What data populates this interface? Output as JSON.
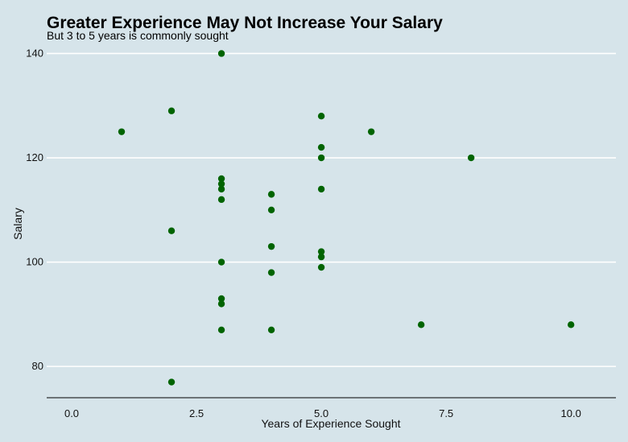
{
  "chart_data": {
    "type": "scatter",
    "title": "Greater Experience May Not Increase Your Salary",
    "subtitle": "But 3 to 5 years is commonly sought",
    "xlabel": "Years of Experience Sought",
    "ylabel": "Salary",
    "xlim": [
      -0.5,
      10.9
    ],
    "ylim": [
      74,
      141
    ],
    "x_ticks": [
      0,
      2.5,
      5,
      7.5,
      10
    ],
    "x_tick_labels": [
      "0.0",
      "2.5",
      "5.0",
      "7.5",
      "10.0"
    ],
    "y_ticks": [
      80,
      100,
      120,
      140
    ],
    "y_tick_labels": [
      "80",
      "100",
      "120",
      "140"
    ],
    "grid": "horizontal-major",
    "point_color": "#006400",
    "grid_color": "#ffffff",
    "background_color": "#d6e4ea",
    "points": [
      {
        "x": 1,
        "y": 125
      },
      {
        "x": 2,
        "y": 129
      },
      {
        "x": 2,
        "y": 106
      },
      {
        "x": 2,
        "y": 77
      },
      {
        "x": 3,
        "y": 140
      },
      {
        "x": 3,
        "y": 116
      },
      {
        "x": 3,
        "y": 115
      },
      {
        "x": 3,
        "y": 114
      },
      {
        "x": 3,
        "y": 112
      },
      {
        "x": 3,
        "y": 100
      },
      {
        "x": 3,
        "y": 93
      },
      {
        "x": 3,
        "y": 92
      },
      {
        "x": 3,
        "y": 87
      },
      {
        "x": 4,
        "y": 113
      },
      {
        "x": 4,
        "y": 110
      },
      {
        "x": 4,
        "y": 103
      },
      {
        "x": 4,
        "y": 98
      },
      {
        "x": 4,
        "y": 87
      },
      {
        "x": 5,
        "y": 128
      },
      {
        "x": 5,
        "y": 122
      },
      {
        "x": 5,
        "y": 120
      },
      {
        "x": 5,
        "y": 114
      },
      {
        "x": 5,
        "y": 102
      },
      {
        "x": 5,
        "y": 101
      },
      {
        "x": 5,
        "y": 99
      },
      {
        "x": 6,
        "y": 125
      },
      {
        "x": 7,
        "y": 88
      },
      {
        "x": 8,
        "y": 120
      },
      {
        "x": 10,
        "y": 88
      }
    ]
  }
}
